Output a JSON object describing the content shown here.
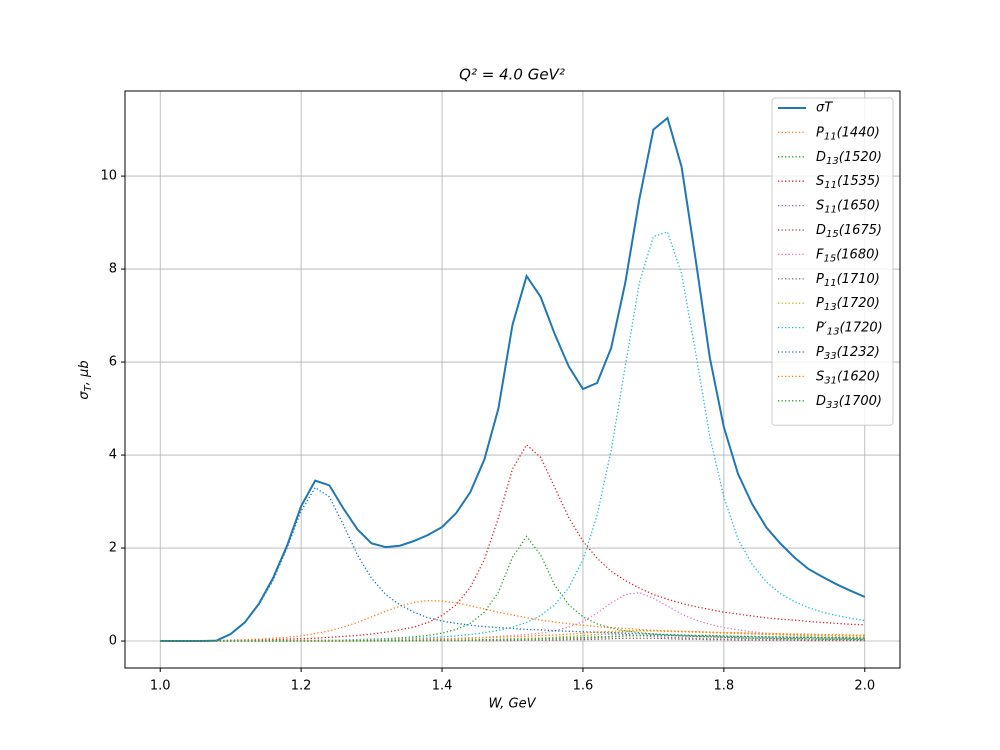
{
  "chart_data": {
    "type": "line",
    "title": "Q² = 4.0 GeV²",
    "x_label": "W, GeV",
    "y_label": "σT, μb",
    "xlim": [
      0.95,
      2.05
    ],
    "ylim": [
      -0.58,
      11.83
    ],
    "xticks": [
      {
        "value": 1,
        "label": "1.0"
      },
      1.2,
      1.4,
      1.6,
      1.8,
      {
        "value": 2,
        "label": "2.0"
      }
    ],
    "yticks": [
      0,
      2,
      4,
      6,
      8,
      10
    ],
    "grid": true,
    "legend": "upper right",
    "x": [
      1.0,
      1.02,
      1.04,
      1.06,
      1.08,
      1.1,
      1.12,
      1.14,
      1.16,
      1.18,
      1.2,
      1.22,
      1.24,
      1.26,
      1.28,
      1.3,
      1.32,
      1.34,
      1.36,
      1.38,
      1.4,
      1.42,
      1.44,
      1.46,
      1.48,
      1.5,
      1.52,
      1.54,
      1.56,
      1.58,
      1.6,
      1.62,
      1.64,
      1.66,
      1.68,
      1.7,
      1.72,
      1.74,
      1.76,
      1.78,
      1.8,
      1.82,
      1.84,
      1.86,
      1.88,
      1.9,
      1.92,
      1.94,
      1.96,
      1.98,
      2.0
    ],
    "series": [
      {
        "name": "σT",
        "color": "#1f77b4",
        "style": "solid",
        "values": [
          0,
          0,
          0,
          0,
          0.01,
          0.15,
          0.4,
          0.8,
          1.35,
          2.05,
          2.9,
          3.45,
          3.35,
          2.85,
          2.4,
          2.1,
          2.02,
          2.05,
          2.15,
          2.28,
          2.45,
          2.75,
          3.2,
          3.9,
          5.0,
          6.8,
          7.85,
          7.4,
          6.6,
          5.9,
          5.42,
          5.55,
          6.3,
          7.7,
          9.5,
          11.0,
          11.25,
          10.2,
          8.2,
          6.1,
          4.6,
          3.6,
          2.95,
          2.45,
          2.1,
          1.8,
          1.55,
          1.38,
          1.22,
          1.08,
          0.95
        ]
      },
      {
        "name": "P11(1440)",
        "color": "#ff7f0e",
        "style": "dotted",
        "values": [
          0,
          0,
          0,
          0,
          0.01,
          0.02,
          0.03,
          0.04,
          0.06,
          0.08,
          0.11,
          0.16,
          0.22,
          0.3,
          0.4,
          0.52,
          0.64,
          0.75,
          0.83,
          0.87,
          0.86,
          0.82,
          0.76,
          0.69,
          0.62,
          0.56,
          0.5,
          0.45,
          0.41,
          0.37,
          0.34,
          0.31,
          0.29,
          0.27,
          0.25,
          0.23,
          0.22,
          0.21,
          0.2,
          0.19,
          0.18,
          0.17,
          0.16,
          0.15,
          0.15,
          0.14,
          0.13,
          0.13,
          0.12,
          0.12,
          0.11
        ]
      },
      {
        "name": "D13(1520)",
        "color": "#2ca02c",
        "style": "dotted",
        "values": [
          0,
          0,
          0,
          0,
          0,
          0,
          0,
          0,
          0,
          0,
          0.01,
          0.01,
          0.02,
          0.02,
          0.03,
          0.04,
          0.05,
          0.07,
          0.09,
          0.12,
          0.17,
          0.25,
          0.38,
          0.62,
          1.05,
          1.8,
          2.25,
          1.85,
          1.2,
          0.78,
          0.52,
          0.37,
          0.28,
          0.22,
          0.18,
          0.15,
          0.13,
          0.11,
          0.1,
          0.09,
          0.08,
          0.07,
          0.06,
          0.06,
          0.05,
          0.05,
          0.05,
          0.04,
          0.04,
          0.04,
          0.03
        ]
      },
      {
        "name": "S11(1535)",
        "color": "#d62728",
        "style": "dotted",
        "values": [
          0,
          0,
          0,
          0,
          0,
          0.01,
          0.01,
          0.02,
          0.03,
          0.04,
          0.05,
          0.06,
          0.08,
          0.1,
          0.12,
          0.15,
          0.19,
          0.24,
          0.3,
          0.4,
          0.55,
          0.78,
          1.15,
          1.75,
          2.65,
          3.7,
          4.22,
          3.95,
          3.3,
          2.65,
          2.15,
          1.78,
          1.5,
          1.3,
          1.14,
          1.0,
          0.9,
          0.81,
          0.74,
          0.68,
          0.62,
          0.58,
          0.54,
          0.5,
          0.47,
          0.45,
          0.42,
          0.4,
          0.38,
          0.36,
          0.35
        ]
      },
      {
        "name": "S11(1650)",
        "color": "#9467bd",
        "style": "dotted",
        "values": [
          0,
          0,
          0,
          0,
          0,
          0,
          0,
          0,
          0,
          0,
          0,
          0,
          0,
          0,
          0,
          0,
          0.01,
          0.01,
          0.01,
          0.01,
          0.02,
          0.02,
          0.02,
          0.03,
          0.03,
          0.04,
          0.05,
          0.06,
          0.08,
          0.1,
          0.12,
          0.14,
          0.15,
          0.14,
          0.12,
          0.1,
          0.08,
          0.07,
          0.06,
          0.05,
          0.04,
          0.04,
          0.03,
          0.03,
          0.03,
          0.02,
          0.02,
          0.02,
          0.02,
          0.02,
          0.02
        ]
      },
      {
        "name": "D15(1675)",
        "color": "#8c564b",
        "style": "dotted",
        "values": [
          0,
          0,
          0,
          0,
          0,
          0,
          0,
          0,
          0,
          0,
          0,
          0,
          0,
          0,
          0,
          0,
          0,
          0,
          0,
          0.01,
          0.01,
          0.01,
          0.01,
          0.01,
          0.01,
          0.01,
          0.02,
          0.02,
          0.02,
          0.03,
          0.03,
          0.04,
          0.05,
          0.06,
          0.06,
          0.06,
          0.05,
          0.04,
          0.04,
          0.03,
          0.03,
          0.02,
          0.02,
          0.02,
          0.02,
          0.02,
          0.01,
          0.01,
          0.01,
          0.01,
          0.01
        ]
      },
      {
        "name": "F15(1680)",
        "color": "#e377c2",
        "style": "dotted",
        "values": [
          0,
          0,
          0,
          0,
          0,
          0,
          0,
          0,
          0,
          0,
          0.01,
          0.01,
          0.01,
          0.01,
          0.02,
          0.02,
          0.03,
          0.03,
          0.04,
          0.05,
          0.05,
          0.06,
          0.07,
          0.08,
          0.1,
          0.12,
          0.14,
          0.17,
          0.22,
          0.3,
          0.42,
          0.6,
          0.82,
          1.0,
          1.04,
          0.92,
          0.75,
          0.58,
          0.45,
          0.36,
          0.29,
          0.24,
          0.2,
          0.17,
          0.15,
          0.13,
          0.12,
          0.11,
          0.1,
          0.09,
          0.08
        ]
      },
      {
        "name": "P11(1710)",
        "color": "#7f7f7f",
        "style": "dotted",
        "values": [
          0,
          0,
          0,
          0,
          0,
          0,
          0,
          0,
          0,
          0,
          0,
          0,
          0,
          0,
          0,
          0,
          0,
          0,
          0.01,
          0.01,
          0.01,
          0.01,
          0.01,
          0.02,
          0.02,
          0.02,
          0.03,
          0.03,
          0.04,
          0.05,
          0.06,
          0.07,
          0.09,
          0.11,
          0.12,
          0.13,
          0.12,
          0.11,
          0.1,
          0.09,
          0.08,
          0.07,
          0.06,
          0.06,
          0.05,
          0.05,
          0.04,
          0.04,
          0.04,
          0.04,
          0.03
        ]
      },
      {
        "name": "P13(1720)",
        "color": "#bcbd22",
        "style": "dotted",
        "values": [
          0,
          0,
          0,
          0,
          0,
          0,
          0,
          0,
          0,
          0,
          0,
          0,
          0,
          0,
          0,
          0,
          0.01,
          0.01,
          0.01,
          0.02,
          0.02,
          0.02,
          0.03,
          0.03,
          0.04,
          0.05,
          0.06,
          0.07,
          0.08,
          0.1,
          0.12,
          0.14,
          0.17,
          0.2,
          0.22,
          0.22,
          0.21,
          0.2,
          0.19,
          0.18,
          0.17,
          0.16,
          0.15,
          0.14,
          0.13,
          0.12,
          0.11,
          0.1,
          0.1,
          0.09,
          0.09
        ]
      },
      {
        "name": "P′13(1720)",
        "color": "#17becf",
        "style": "dotted",
        "values": [
          0,
          0,
          0,
          0,
          0,
          0,
          0,
          0,
          0,
          0.01,
          0.01,
          0.01,
          0.02,
          0.02,
          0.03,
          0.03,
          0.04,
          0.05,
          0.06,
          0.07,
          0.09,
          0.11,
          0.14,
          0.18,
          0.23,
          0.3,
          0.4,
          0.55,
          0.78,
          1.15,
          1.75,
          2.7,
          4.1,
          5.9,
          7.7,
          8.7,
          8.8,
          7.9,
          6.2,
          4.4,
          3.1,
          2.2,
          1.65,
          1.28,
          1.02,
          0.85,
          0.72,
          0.62,
          0.55,
          0.49,
          0.44
        ]
      },
      {
        "name": "P33(1232)",
        "color": "#1f77b4",
        "style": "dotted",
        "values": [
          0,
          0,
          0,
          0,
          0.01,
          0.15,
          0.4,
          0.78,
          1.3,
          2.0,
          2.8,
          3.3,
          3.1,
          2.5,
          1.85,
          1.35,
          1.0,
          0.78,
          0.62,
          0.5,
          0.43,
          0.38,
          0.34,
          0.31,
          0.29,
          0.27,
          0.25,
          0.24,
          0.22,
          0.21,
          0.2,
          0.19,
          0.18,
          0.17,
          0.16,
          0.15,
          0.14,
          0.13,
          0.12,
          0.12,
          0.11,
          0.1,
          0.1,
          0.09,
          0.09,
          0.08,
          0.08,
          0.07,
          0.07,
          0.06,
          0.06
        ]
      },
      {
        "name": "S31(1620)",
        "color": "#ff7f0e",
        "style": "dotted",
        "values": [
          0,
          0,
          0,
          0,
          0,
          0,
          0,
          0,
          0,
          0,
          0.01,
          0.01,
          0.01,
          0.01,
          0.02,
          0.02,
          0.02,
          0.03,
          0.03,
          0.04,
          0.04,
          0.05,
          0.06,
          0.07,
          0.08,
          0.09,
          0.1,
          0.12,
          0.13,
          0.15,
          0.17,
          0.19,
          0.21,
          0.22,
          0.22,
          0.22,
          0.21,
          0.2,
          0.2,
          0.19,
          0.18,
          0.18,
          0.17,
          0.16,
          0.16,
          0.15,
          0.15,
          0.14,
          0.14,
          0.13,
          0.13
        ]
      },
      {
        "name": "D33(1700)",
        "color": "#2ca02c",
        "style": "dotted",
        "values": [
          0,
          0,
          0,
          0,
          0,
          0,
          0,
          0,
          0,
          0,
          0,
          0,
          0,
          0,
          0.01,
          0.01,
          0.01,
          0.01,
          0.01,
          0.02,
          0.02,
          0.02,
          0.02,
          0.03,
          0.03,
          0.04,
          0.04,
          0.05,
          0.06,
          0.07,
          0.08,
          0.09,
          0.1,
          0.11,
          0.12,
          0.12,
          0.12,
          0.12,
          0.11,
          0.11,
          0.1,
          0.1,
          0.09,
          0.09,
          0.08,
          0.08,
          0.08,
          0.07,
          0.07,
          0.07,
          0.06
        ]
      }
    ]
  }
}
